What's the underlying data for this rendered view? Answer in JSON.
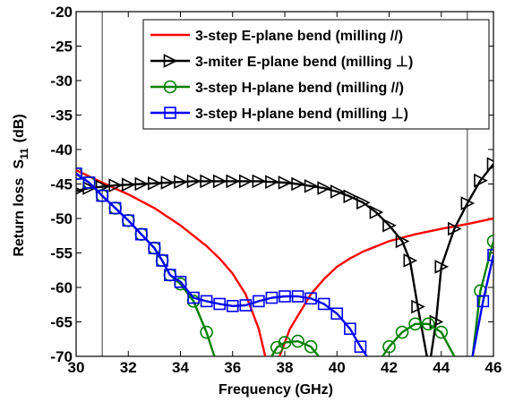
{
  "chart_data": {
    "type": "line",
    "title": "",
    "xlabel": "Frequency (GHz)",
    "ylabel": "Return loss",
    "ylabel_sym": "S",
    "ylabel_sub": "11",
    "ylabel_unit": "(dB)",
    "xlim": [
      30,
      46
    ],
    "ylim": [
      -70,
      -20
    ],
    "xticks": [
      30,
      32,
      34,
      36,
      38,
      40,
      42,
      44,
      46
    ],
    "yticks": [
      -20,
      -25,
      -30,
      -35,
      -40,
      -45,
      -50,
      -55,
      -60,
      -65,
      -70
    ],
    "vlines": [
      31,
      45
    ],
    "grid": false,
    "legend_position": "top-right",
    "series": [
      {
        "name": "3-step E-plane bend (milling //)",
        "color": "#ff0000",
        "marker": "none",
        "segments": [
          [
            [
              30,
              -43
            ],
            [
              31,
              -44.8
            ],
            [
              32,
              -46.5
            ],
            [
              33,
              -48.5
            ],
            [
              34,
              -51
            ],
            [
              35,
              -54
            ],
            [
              35.5,
              -55.8
            ],
            [
              36,
              -58
            ],
            [
              36.5,
              -61
            ],
            [
              37,
              -66
            ],
            [
              37.25,
              -70
            ]
          ],
          [
            [
              37.8,
              -70
            ],
            [
              38.2,
              -66
            ],
            [
              38.6,
              -63.5
            ],
            [
              39,
              -61
            ],
            [
              39.5,
              -58.8
            ],
            [
              40,
              -57
            ],
            [
              40.5,
              -55.8
            ],
            [
              41,
              -54.8
            ],
            [
              42,
              -53.3
            ],
            [
              43,
              -52.3
            ],
            [
              44,
              -51.5
            ],
            [
              45,
              -50.8
            ],
            [
              46,
              -50
            ]
          ]
        ]
      },
      {
        "name": "3-miter E-plane bend (milling ⊥)",
        "color": "#000000",
        "marker": "triangle-right",
        "segments": [
          [
            [
              30,
              -46
            ],
            [
              30.5,
              -45.6
            ],
            [
              31,
              -45.4
            ],
            [
              31.5,
              -45.2
            ],
            [
              32,
              -45.1
            ],
            [
              32.5,
              -45
            ],
            [
              33,
              -44.9
            ],
            [
              33.5,
              -44.8
            ],
            [
              34,
              -44.7
            ],
            [
              34.5,
              -44.6
            ],
            [
              35,
              -44.6
            ],
            [
              35.5,
              -44.6
            ],
            [
              36,
              -44.6
            ],
            [
              36.5,
              -44.6
            ],
            [
              37,
              -44.6
            ],
            [
              37.5,
              -44.7
            ],
            [
              38,
              -44.8
            ],
            [
              38.5,
              -45
            ],
            [
              39,
              -45.3
            ],
            [
              39.5,
              -45.6
            ],
            [
              40,
              -46.1
            ],
            [
              40.5,
              -46.8
            ],
            [
              41,
              -47.7
            ],
            [
              41.5,
              -49.1
            ],
            [
              42,
              -51
            ],
            [
              42.5,
              -53.3
            ],
            [
              42.8,
              -56.1
            ],
            [
              43.1,
              -62.8
            ],
            [
              43.45,
              -70
            ]
          ],
          [
            [
              43.6,
              -70
            ],
            [
              43.8,
              -65
            ],
            [
              44,
              -57
            ],
            [
              44.5,
              -51.5
            ],
            [
              45,
              -47.8
            ],
            [
              45.5,
              -44.5
            ],
            [
              46,
              -42.1
            ]
          ]
        ]
      },
      {
        "name": "3-step H-plane bend (milling //)",
        "color": "#008000",
        "marker": "circle",
        "segments": [
          [
            [
              30,
              -43.5
            ],
            [
              30.5,
              -44.8
            ],
            [
              31,
              -46.7
            ],
            [
              31.5,
              -48.5
            ],
            [
              32,
              -50.3
            ],
            [
              32.5,
              -52.3
            ],
            [
              33,
              -54.3
            ],
            [
              33.3,
              -56.1
            ],
            [
              33.6,
              -58.2
            ],
            [
              34,
              -59.5
            ],
            [
              34.5,
              -62
            ],
            [
              35,
              -66.5
            ],
            [
              35.3,
              -70
            ]
          ],
          [
            [
              37.5,
              -70
            ],
            [
              37.7,
              -68.7
            ],
            [
              38,
              -68
            ],
            [
              38.5,
              -67.8
            ],
            [
              39,
              -68.6
            ],
            [
              39.3,
              -70
            ]
          ],
          [
            [
              41.75,
              -70
            ],
            [
              42,
              -68.6
            ],
            [
              42.5,
              -66.5
            ],
            [
              43,
              -65.3
            ],
            [
              43.5,
              -65.3
            ],
            [
              44,
              -66.5
            ],
            [
              44.5,
              -70
            ]
          ],
          [
            [
              45.2,
              -70
            ],
            [
              45.5,
              -60.5
            ],
            [
              46,
              -53.3
            ]
          ]
        ]
      },
      {
        "name": "3-step H-plane bend (milling ⊥)",
        "color": "#0000ff",
        "marker": "square",
        "segments": [
          [
            [
              30,
              -43.5
            ],
            [
              30.5,
              -44.8
            ],
            [
              31,
              -46.7
            ],
            [
              31.5,
              -48.5
            ],
            [
              32,
              -50.3
            ],
            [
              32.5,
              -52.3
            ],
            [
              33,
              -54.3
            ],
            [
              33.3,
              -56.1
            ],
            [
              33.6,
              -58.2
            ],
            [
              34,
              -59.2
            ],
            [
              34.5,
              -61.5
            ],
            [
              35,
              -62
            ],
            [
              35.5,
              -62.4
            ],
            [
              36,
              -62.7
            ],
            [
              36.5,
              -62.6
            ],
            [
              37,
              -62
            ],
            [
              37.5,
              -61.5
            ],
            [
              38,
              -61.3
            ],
            [
              38.5,
              -61.3
            ],
            [
              39,
              -61.6
            ],
            [
              39.5,
              -62.4
            ],
            [
              40,
              -63.8
            ],
            [
              40.5,
              -66
            ],
            [
              40.9,
              -68.6
            ],
            [
              41.15,
              -70
            ]
          ],
          [
            [
              45.2,
              -70
            ],
            [
              45.6,
              -62
            ],
            [
              46,
              -55.3
            ]
          ]
        ]
      }
    ]
  }
}
